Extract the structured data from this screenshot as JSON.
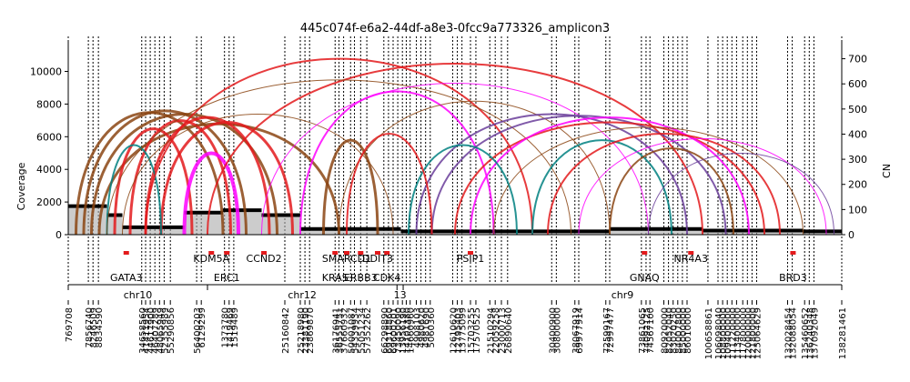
{
  "chart_data": {
    "type": "line",
    "title": "445c074f-e6a2-44df-a8e3-0fcc9a773326_amplicon3",
    "ylabel": "Coverage",
    "y2label": "CN",
    "ylim": [
      0,
      11700
    ],
    "y2lim": [
      0,
      760
    ],
    "yticks": [
      0,
      2000,
      4000,
      6000,
      8000,
      10000
    ],
    "y2ticks": [
      0,
      100,
      200,
      300,
      400,
      500,
      600,
      700
    ],
    "chromosomes": [
      {
        "name": "chr10",
        "start": 0,
        "end": 0.18
      },
      {
        "name": "chr12",
        "start": 0.18,
        "end": 0.425
      },
      {
        "name": "13",
        "start": 0.425,
        "end": 0.433
      },
      {
        "name": "chr9",
        "start": 0.433,
        "end": 1.0
      }
    ],
    "genes": [
      {
        "name": "GATA3",
        "pos": 0.075,
        "row": 1
      },
      {
        "name": "KDM5A",
        "pos": 0.185,
        "row": 0
      },
      {
        "name": "ERC1",
        "pos": 0.205,
        "row": 1
      },
      {
        "name": "CCND2",
        "pos": 0.253,
        "row": 0
      },
      {
        "name": "SMARCD1",
        "pos": 0.36,
        "row": 0
      },
      {
        "name": "KRAS",
        "pos": 0.345,
        "row": 1
      },
      {
        "name": "ERBB3",
        "pos": 0.378,
        "row": 1
      },
      {
        "name": "DDIT3",
        "pos": 0.4,
        "row": 0
      },
      {
        "name": "CDK4",
        "pos": 0.412,
        "row": 1
      },
      {
        "name": "PSIP1",
        "pos": 0.52,
        "row": 0
      },
      {
        "name": "GNAQ",
        "pos": 0.745,
        "row": 1
      },
      {
        "name": "NR4A3",
        "pos": 0.805,
        "row": 0
      },
      {
        "name": "BRD3",
        "pos": 0.937,
        "row": 1
      }
    ],
    "tick_labels": [
      {
        "label": "769708",
        "pos": 0.0
      },
      {
        "label": "7856740",
        "pos": 0.026
      },
      {
        "label": "8246509",
        "pos": 0.032
      },
      {
        "label": "8834590",
        "pos": 0.039
      },
      {
        "label": "34658560",
        "pos": 0.095
      },
      {
        "label": "41411954",
        "pos": 0.1
      },
      {
        "label": "44617900",
        "pos": 0.106
      },
      {
        "label": "46407289",
        "pos": 0.112
      },
      {
        "label": "48065949",
        "pos": 0.118
      },
      {
        "label": "52355989",
        "pos": 0.124
      },
      {
        "label": "55290856",
        "pos": 0.132
      },
      {
        "label": "56400203",
        "pos": 0.166
      },
      {
        "label": "6129299",
        "pos": 0.172
      },
      {
        "label": "1373780",
        "pos": 0.202
      },
      {
        "label": "1419469",
        "pos": 0.208
      },
      {
        "label": "1519489",
        "pos": 0.214
      },
      {
        "label": "25160842",
        "pos": 0.28
      },
      {
        "label": "25218980",
        "pos": 0.3
      },
      {
        "label": "23381190",
        "pos": 0.306
      },
      {
        "label": "23869870",
        "pos": 0.312
      },
      {
        "label": "36176941",
        "pos": 0.345
      },
      {
        "label": "36555751",
        "pos": 0.35
      },
      {
        "label": "37660932",
        "pos": 0.356
      },
      {
        "label": "50001087",
        "pos": 0.365
      },
      {
        "label": "54339934",
        "pos": 0.37
      },
      {
        "label": "55051234",
        "pos": 0.378
      },
      {
        "label": "57352262",
        "pos": 0.386
      },
      {
        "label": "66298890",
        "pos": 0.408
      },
      {
        "label": "69318860",
        "pos": 0.414
      },
      {
        "label": "69600201",
        "pos": 0.42
      },
      {
        "label": "73450090",
        "pos": 0.426
      },
      {
        "label": "13956190",
        "pos": 0.432
      },
      {
        "label": "14101380",
        "pos": 0.437
      },
      {
        "label": "14660960",
        "pos": 0.442
      },
      {
        "label": "4908103",
        "pos": 0.45
      },
      {
        "label": "4980620",
        "pos": 0.456
      },
      {
        "label": "4981690",
        "pos": 0.462
      },
      {
        "label": "5060360",
        "pos": 0.468
      },
      {
        "label": "12610620",
        "pos": 0.497
      },
      {
        "label": "12795403",
        "pos": 0.503
      },
      {
        "label": "13775099",
        "pos": 0.509
      },
      {
        "label": "15703255",
        "pos": 0.52
      },
      {
        "label": "17570525",
        "pos": 0.527
      },
      {
        "label": "21510294",
        "pos": 0.545
      },
      {
        "label": "22059258",
        "pos": 0.552
      },
      {
        "label": "23000713",
        "pos": 0.56
      },
      {
        "label": "26890640",
        "pos": 0.568
      },
      {
        "label": "30400900",
        "pos": 0.625
      },
      {
        "label": "30800000",
        "pos": 0.631
      },
      {
        "label": "38067919",
        "pos": 0.655
      },
      {
        "label": "69977914",
        "pos": 0.66
      },
      {
        "label": "72599167",
        "pos": 0.695
      },
      {
        "label": "72997477",
        "pos": 0.7
      },
      {
        "label": "73861065",
        "pos": 0.741
      },
      {
        "label": "74092125",
        "pos": 0.747
      },
      {
        "label": "74567100",
        "pos": 0.752
      },
      {
        "label": "80920000",
        "pos": 0.77
      },
      {
        "label": "82052040",
        "pos": 0.776
      },
      {
        "label": "83020250",
        "pos": 0.782
      },
      {
        "label": "84007800",
        "pos": 0.788
      },
      {
        "label": "85000000",
        "pos": 0.794
      },
      {
        "label": "86010000",
        "pos": 0.8
      },
      {
        "label": "100658861",
        "pos": 0.827
      },
      {
        "label": "106098040",
        "pos": 0.84
      },
      {
        "label": "108800000",
        "pos": 0.846
      },
      {
        "label": "109400000",
        "pos": 0.852
      },
      {
        "label": "111220000",
        "pos": 0.858
      },
      {
        "label": "113400000",
        "pos": 0.864
      },
      {
        "label": "117800000",
        "pos": 0.872
      },
      {
        "label": "120000000",
        "pos": 0.878
      },
      {
        "label": "121800000",
        "pos": 0.884
      },
      {
        "label": "125064629",
        "pos": 0.89
      },
      {
        "label": "132028454",
        "pos": 0.93
      },
      {
        "label": "132088054",
        "pos": 0.936
      },
      {
        "label": "135460652",
        "pos": 0.952
      },
      {
        "label": "136240348",
        "pos": 0.958
      },
      {
        "label": "137092049",
        "pos": 0.964
      },
      {
        "label": "138281461",
        "pos": 1.0
      }
    ],
    "coverage_segments": [
      {
        "x0": 0.0,
        "x1": 0.05,
        "y": 1750
      },
      {
        "x0": 0.05,
        "x1": 0.07,
        "y": 1200
      },
      {
        "x0": 0.07,
        "x1": 0.15,
        "y": 450
      },
      {
        "x0": 0.15,
        "x1": 0.2,
        "y": 1350
      },
      {
        "x0": 0.2,
        "x1": 0.25,
        "y": 1500
      },
      {
        "x0": 0.25,
        "x1": 0.3,
        "y": 1200
      },
      {
        "x0": 0.3,
        "x1": 0.43,
        "y": 350
      },
      {
        "x0": 0.43,
        "x1": 0.7,
        "y": 200
      },
      {
        "x0": 0.7,
        "x1": 0.82,
        "y": 350
      },
      {
        "x0": 0.82,
        "x1": 0.95,
        "y": 250
      },
      {
        "x0": 0.95,
        "x1": 1.0,
        "y": 200
      }
    ],
    "breakpoints": [
      {
        "a": 0.01,
        "b": 0.2,
        "h": 7500,
        "color": "#8b4513",
        "w": 3
      },
      {
        "a": 0.02,
        "b": 0.23,
        "h": 7600,
        "color": "#8b4513",
        "w": 3
      },
      {
        "a": 0.03,
        "b": 0.27,
        "h": 7400,
        "color": "#8b4513",
        "w": 3
      },
      {
        "a": 0.04,
        "b": 0.35,
        "h": 6800,
        "color": "#8b4513",
        "w": 3
      },
      {
        "a": 0.06,
        "b": 0.16,
        "h": 6500,
        "color": "#e31a1c",
        "w": 3
      },
      {
        "a": 0.08,
        "b": 0.21,
        "h": 7000,
        "color": "#e31a1c",
        "w": 3
      },
      {
        "a": 0.1,
        "b": 0.26,
        "h": 7200,
        "color": "#e31a1c",
        "w": 3
      },
      {
        "a": 0.12,
        "b": 0.29,
        "h": 6900,
        "color": "#e31a1c",
        "w": 3
      },
      {
        "a": 0.15,
        "b": 0.22,
        "h": 5000,
        "color": "#ff00ff",
        "w": 4
      },
      {
        "a": 0.05,
        "b": 0.12,
        "h": 5500,
        "color": "#008080",
        "w": 2
      },
      {
        "a": 0.07,
        "b": 0.42,
        "h": 7400,
        "color": "#8b4513",
        "w": 1
      },
      {
        "a": 0.1,
        "b": 0.6,
        "h": 10800,
        "color": "#e31a1c",
        "w": 2
      },
      {
        "a": 0.18,
        "b": 0.82,
        "h": 10500,
        "color": "#e31a1c",
        "w": 2
      },
      {
        "a": 0.05,
        "b": 0.65,
        "h": 9500,
        "color": "#8b4513",
        "w": 1
      },
      {
        "a": 0.25,
        "b": 0.75,
        "h": 9300,
        "color": "#ff00ff",
        "w": 1
      },
      {
        "a": 0.3,
        "b": 0.55,
        "h": 8800,
        "color": "#ff00ff",
        "w": 2
      },
      {
        "a": 0.35,
        "b": 0.7,
        "h": 8200,
        "color": "#8b4513",
        "w": 1
      },
      {
        "a": 0.45,
        "b": 0.8,
        "h": 7400,
        "color": "#6a3d9a",
        "w": 2
      },
      {
        "a": 0.47,
        "b": 0.85,
        "h": 7300,
        "color": "#6a3d9a",
        "w": 2
      },
      {
        "a": 0.5,
        "b": 0.9,
        "h": 6900,
        "color": "#e31a1c",
        "w": 2
      },
      {
        "a": 0.52,
        "b": 0.88,
        "h": 7200,
        "color": "#ff00ff",
        "w": 2
      },
      {
        "a": 0.55,
        "b": 0.95,
        "h": 6600,
        "color": "#8b4513",
        "w": 1
      },
      {
        "a": 0.6,
        "b": 0.78,
        "h": 5800,
        "color": "#008080",
        "w": 2
      },
      {
        "a": 0.62,
        "b": 0.92,
        "h": 6200,
        "color": "#e31a1c",
        "w": 2
      },
      {
        "a": 0.66,
        "b": 0.98,
        "h": 5900,
        "color": "#ff00ff",
        "w": 1
      },
      {
        "a": 0.7,
        "b": 0.86,
        "h": 5300,
        "color": "#8b4513",
        "w": 2
      },
      {
        "a": 0.44,
        "b": 0.58,
        "h": 5500,
        "color": "#008080",
        "w": 2
      },
      {
        "a": 0.33,
        "b": 0.4,
        "h": 5800,
        "color": "#8b4513",
        "w": 3
      },
      {
        "a": 0.36,
        "b": 0.47,
        "h": 6200,
        "color": "#e31a1c",
        "w": 2
      },
      {
        "a": 0.75,
        "b": 0.99,
        "h": 5000,
        "color": "#6a3d9a",
        "w": 1
      }
    ]
  }
}
